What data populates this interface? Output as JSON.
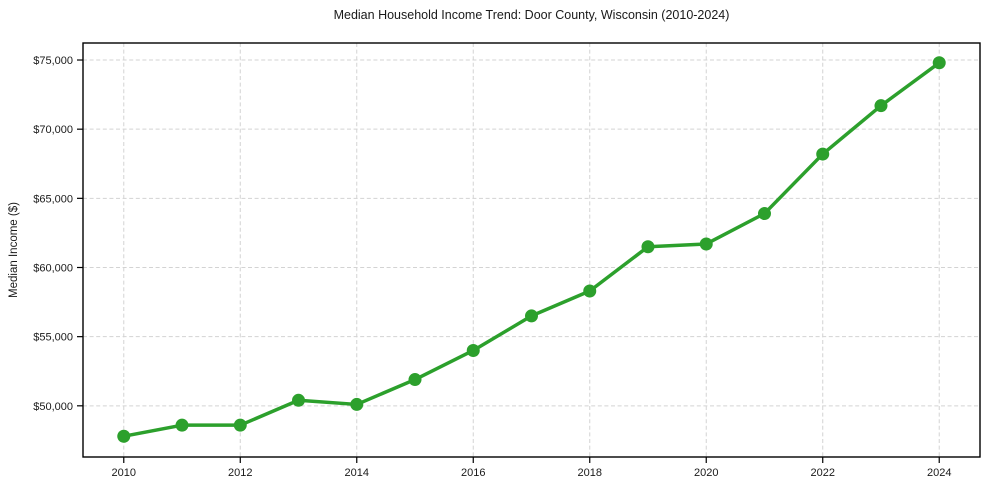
{
  "chart_data": {
    "type": "line",
    "title": "Median Household Income Trend: Door County, Wisconsin (2010-2024)",
    "xlabel": "",
    "ylabel": "Median Income ($)",
    "x": [
      2010,
      2011,
      2012,
      2013,
      2014,
      2015,
      2016,
      2017,
      2018,
      2019,
      2020,
      2021,
      2022,
      2023,
      2024
    ],
    "series": [
      {
        "name": "Median Household Income",
        "values": [
          47800,
          48600,
          48600,
          50400,
          50100,
          51900,
          54000,
          56500,
          58300,
          61500,
          61700,
          63900,
          68200,
          71700,
          74800
        ],
        "color": "#2ca02c",
        "marker": "circle"
      }
    ],
    "xlim": [
      2009.3,
      2024.7
    ],
    "ylim": [
      46300,
      76230
    ],
    "x_tick_values": [
      2010,
      2012,
      2014,
      2016,
      2018,
      2020,
      2022,
      2024
    ],
    "x_tick_labels": [
      "2010",
      "2012",
      "2014",
      "2016",
      "2018",
      "2020",
      "2022",
      "2024"
    ],
    "y_tick_values": [
      50000,
      55000,
      60000,
      65000,
      70000,
      75000
    ],
    "y_tick_labels": [
      "$50,000",
      "$55,000",
      "$60,000",
      "$65,000",
      "$70,000",
      "$75,000"
    ],
    "grid": true,
    "grid_color": "#d3d3d3",
    "legend_position": "none",
    "axis_color": "#000000",
    "text_color": "#1a1a1a",
    "background_color": "#ffffff"
  }
}
